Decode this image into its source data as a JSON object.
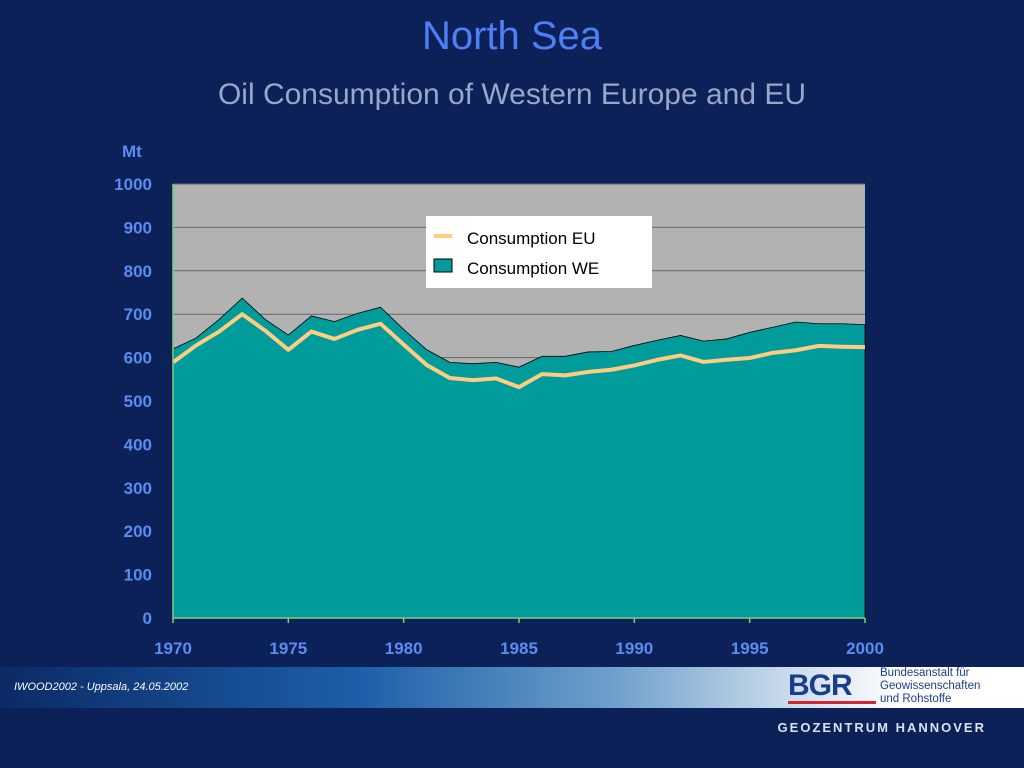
{
  "slide": {
    "title": "North Sea",
    "subtitle": "Oil Consumption of Western Europe and EU"
  },
  "chart_data": {
    "type": "area",
    "title": "North Sea",
    "subtitle": "Oil Consumption of Western Europe and EU",
    "ylabel": "Mt",
    "xlabel": "",
    "xlim": [
      1970,
      2000
    ],
    "ylim": [
      0,
      1000
    ],
    "x_ticks": [
      1970,
      1975,
      1980,
      1985,
      1990,
      1995,
      2000
    ],
    "y_ticks": [
      0,
      100,
      200,
      300,
      400,
      500,
      600,
      700,
      800,
      900,
      1000
    ],
    "grid": true,
    "legend_position": "top-center",
    "x": [
      1970,
      1971,
      1972,
      1973,
      1974,
      1975,
      1976,
      1977,
      1978,
      1979,
      1980,
      1981,
      1982,
      1983,
      1984,
      1985,
      1986,
      1987,
      1988,
      1989,
      1990,
      1991,
      1992,
      1993,
      1994,
      1995,
      1996,
      1997,
      1998,
      1999,
      2000
    ],
    "series": [
      {
        "name": "Consumption WE",
        "kind": "area",
        "color": "#009c9c",
        "values": [
          620,
          645,
          688,
          737,
          688,
          652,
          696,
          683,
          702,
          716,
          665,
          618,
          589,
          586,
          589,
          578,
          603,
          603,
          613,
          614,
          628,
          640,
          651,
          638,
          643,
          658,
          670,
          682,
          678,
          678,
          676
        ]
      },
      {
        "name": "Consumption EU",
        "kind": "line",
        "color": "#ffcc80",
        "values": [
          589,
          628,
          660,
          700,
          662,
          618,
          660,
          643,
          664,
          678,
          630,
          583,
          553,
          548,
          552,
          532,
          562,
          559,
          567,
          572,
          582,
          595,
          605,
          590,
          595,
          599,
          611,
          617,
          627,
          625,
          624
        ]
      }
    ]
  },
  "footer": {
    "event": "IWOOD2002 - Uppsala, 24.05.2002",
    "logo_text": "BGR",
    "logo_line1": "Bundesanstalt für",
    "logo_line2": "Geowissenschaften",
    "logo_line3": "und Rohstoffe",
    "geozentrum": "GEOZENTRUM HANNOVER"
  },
  "colors": {
    "background": "#0b2157",
    "plot_area": "#b2b2b2",
    "accent": "#4f7ef7"
  }
}
